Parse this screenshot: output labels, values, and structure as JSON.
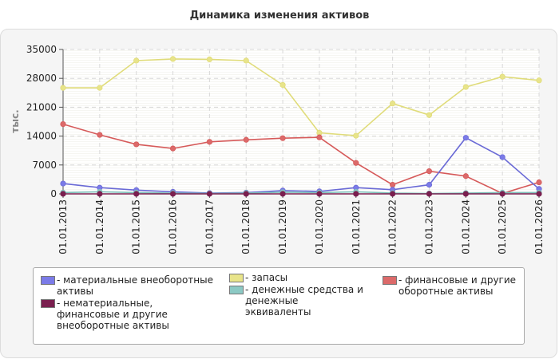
{
  "chart_data": {
    "type": "line",
    "title": "Динамика изменения активов",
    "ylabel": "тыс.",
    "ylim": [
      0,
      35000
    ],
    "yticks": [
      "0",
      "7000",
      "14000",
      "21000",
      "28000",
      "35000"
    ],
    "categories": [
      "01.01.2013",
      "01.01.2014",
      "01.01.2015",
      "01.01.2016",
      "01.01.2017",
      "01.01.2018",
      "01.01.2019",
      "01.01.2020",
      "01.01.2021",
      "01.01.2022",
      "01.01.2023",
      "01.01.2024",
      "01.01.2025",
      "01.01.2026"
    ],
    "grid": true,
    "legend_position": "bottom",
    "series": [
      {
        "name": "- материальные внеоборотные активы",
        "color": "#7b7be8",
        "line_color": "#6a6ad6",
        "values": [
          2500,
          1500,
          900,
          500,
          200,
          300,
          800,
          600,
          1500,
          1000,
          2200,
          13600,
          8900,
          1200
        ]
      },
      {
        "name": "- нематериальные, финансовые и другие внеоборотные активы",
        "color": "#7a1f4f",
        "line_color": "#7a1f4f",
        "values": [
          0,
          0,
          0,
          0,
          0,
          0,
          0,
          0,
          0,
          0,
          0,
          0,
          0,
          0
        ]
      },
      {
        "name": "- запасы",
        "color": "#e8e48a",
        "line_color": "#e0dc7a",
        "values": [
          25700,
          25700,
          32300,
          32700,
          32600,
          32300,
          26400,
          14800,
          14100,
          21900,
          19100,
          25900,
          28400,
          27500
        ]
      },
      {
        "name": "- денежные средства и денежные эквиваленты",
        "color": "#8cc9c4",
        "line_color": "#7ec0ba",
        "values": [
          300,
          500,
          300,
          200,
          100,
          200,
          400,
          300,
          500,
          200,
          100,
          200,
          300,
          300
        ]
      },
      {
        "name": "- финансовые и другие оборотные активы",
        "color": "#dc6a6a",
        "line_color": "#d65a5a",
        "values": [
          16900,
          14300,
          12000,
          11000,
          12600,
          13100,
          13500,
          13700,
          7500,
          2200,
          5500,
          4300,
          100,
          2800
        ]
      }
    ]
  }
}
